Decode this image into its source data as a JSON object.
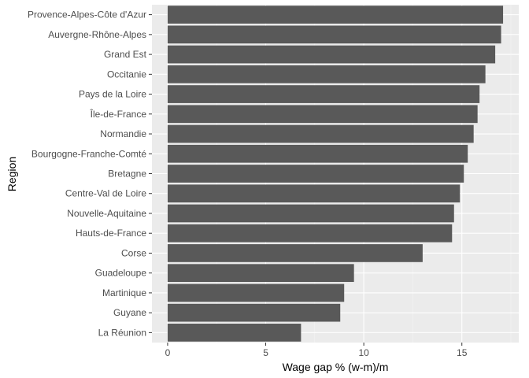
{
  "chart_data": {
    "type": "bar",
    "orientation": "horizontal",
    "xlabel": "Wage gap % (w-m)/m",
    "ylabel": "Region",
    "xlim": [
      -0.8,
      17.9
    ],
    "x_ticks": [
      0,
      5,
      10,
      15
    ],
    "grid": true,
    "colors": {
      "panel_background": "#ebebeb",
      "grid_major": "#ffffff",
      "grid_minor": "#f5f5f5",
      "bar": "#595959"
    },
    "categories": [
      "Provence-Alpes-Côte d'Azur",
      "Auvergne-Rhône-Alpes",
      "Grand Est",
      "Occitanie",
      "Pays de la Loire",
      "Île-de-France",
      "Normandie",
      "Bourgogne-Franche-Comté",
      "Bretagne",
      "Centre-Val de Loire",
      "Nouvelle-Aquitaine",
      "Hauts-de-France",
      "Corse",
      "Guadeloupe",
      "Martinique",
      "Guyane",
      "La Réunion"
    ],
    "values": [
      17.1,
      17.0,
      16.7,
      16.2,
      15.9,
      15.8,
      15.6,
      15.3,
      15.1,
      14.9,
      14.6,
      14.5,
      13.0,
      9.5,
      9.0,
      8.8,
      6.8
    ]
  }
}
